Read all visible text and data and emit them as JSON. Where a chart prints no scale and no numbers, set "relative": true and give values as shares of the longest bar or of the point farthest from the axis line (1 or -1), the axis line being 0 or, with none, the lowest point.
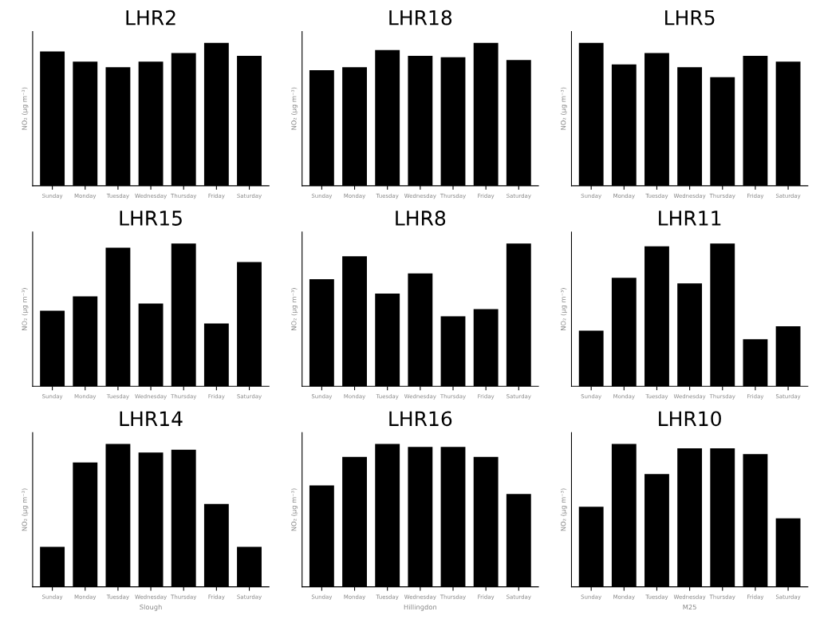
{
  "chart_data": [
    {
      "type": "bar",
      "title": "LHR2",
      "ylabel": "NO₂ (μg m⁻³)",
      "relative": true,
      "categories": [
        "Sunday",
        "Monday",
        "Tuesday",
        "Wednesday",
        "Thursday",
        "Friday",
        "Saturday"
      ],
      "values": [
        0.94,
        0.87,
        0.83,
        0.87,
        0.93,
        1,
        0.91
      ],
      "color": "#000000"
    },
    {
      "type": "bar",
      "title": "LHR18",
      "ylabel": "NO₂ (μg m⁻³)",
      "relative": true,
      "categories": [
        "Sunday",
        "Monday",
        "Tuesday",
        "Wednesday",
        "Thursday",
        "Friday",
        "Saturday"
      ],
      "values": [
        0.81,
        0.83,
        0.95,
        0.91,
        0.9,
        1,
        0.88
      ],
      "color": "#000000"
    },
    {
      "type": "bar",
      "title": "LHR5",
      "ylabel": "NO₂ (μg m⁻³)",
      "relative": true,
      "categories": [
        "Sunday",
        "Monday",
        "Tuesday",
        "Wednesday",
        "Thursday",
        "Friday",
        "Saturday"
      ],
      "values": [
        1,
        0.85,
        0.93,
        0.83,
        0.76,
        0.91,
        0.87
      ],
      "color": "#000000"
    },
    {
      "type": "bar",
      "title": "LHR15",
      "ylabel": "NO₂ (μg m⁻³)",
      "relative": true,
      "categories": [
        "Sunday",
        "Monday",
        "Tuesday",
        "Wednesday",
        "Thursday",
        "Friday",
        "Saturday"
      ],
      "values": [
        0.53,
        0.63,
        0.97,
        0.58,
        1,
        0.44,
        0.87
      ],
      "color": "#000000"
    },
    {
      "type": "bar",
      "title": "LHR8",
      "ylabel": "NO₂ (μg m⁻³)",
      "relative": true,
      "categories": [
        "Sunday",
        "Monday",
        "Tuesday",
        "Wednesday",
        "Thursday",
        "Friday",
        "Saturday"
      ],
      "values": [
        0.75,
        0.91,
        0.65,
        0.79,
        0.49,
        0.54,
        1
      ],
      "color": "#000000"
    },
    {
      "type": "bar",
      "title": "LHR11",
      "ylabel": "NO₂ (μg m⁻³)",
      "relative": true,
      "categories": [
        "Sunday",
        "Monday",
        "Tuesday",
        "Wednesday",
        "Thursday",
        "Friday",
        "Saturday"
      ],
      "values": [
        0.39,
        0.76,
        0.98,
        0.72,
        1,
        0.33,
        0.42
      ],
      "color": "#000000"
    },
    {
      "type": "bar",
      "title": "LHR14",
      "ylabel": "NO₂ (μg m⁻³)",
      "xlabel": "Slough",
      "relative": true,
      "categories": [
        "Sunday",
        "Monday",
        "Tuesday",
        "Wednesday",
        "Thursday",
        "Friday",
        "Saturday"
      ],
      "values": [
        0.28,
        0.87,
        1,
        0.94,
        0.96,
        0.58,
        0.28
      ],
      "color": "#000000"
    },
    {
      "type": "bar",
      "title": "LHR16",
      "ylabel": "NO₂ (μg m⁻³)",
      "xlabel": "Hillingdon",
      "relative": true,
      "categories": [
        "Sunday",
        "Monday",
        "Tuesday",
        "Wednesday",
        "Thursday",
        "Friday",
        "Saturday"
      ],
      "values": [
        0.71,
        0.91,
        1,
        0.98,
        0.98,
        0.91,
        0.65
      ],
      "color": "#000000"
    },
    {
      "type": "bar",
      "title": "LHR10",
      "ylabel": "NO₂ (μg m⁻³)",
      "xlabel": "M25",
      "relative": true,
      "categories": [
        "Sunday",
        "Monday",
        "Tuesday",
        "Wednesday",
        "Thursday",
        "Friday",
        "Saturday"
      ],
      "values": [
        0.56,
        1,
        0.79,
        0.97,
        0.97,
        0.93,
        0.48
      ],
      "color": "#000000"
    }
  ]
}
